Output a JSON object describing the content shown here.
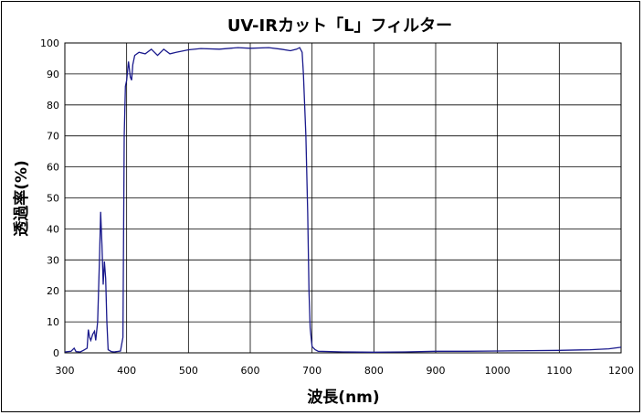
{
  "chart_data": {
    "type": "line",
    "title": "UV-IRカット「L」フィルター",
    "xlabel": "波長(nm)",
    "ylabel": "透過率(%)",
    "xlim": [
      300,
      1200
    ],
    "ylim": [
      0,
      100
    ],
    "xticks": [
      300,
      400,
      500,
      600,
      700,
      800,
      900,
      1000,
      1100,
      1200
    ],
    "yticks": [
      0,
      10,
      20,
      30,
      40,
      50,
      60,
      70,
      80,
      90,
      100
    ],
    "grid": true,
    "legend": "none",
    "colors": {
      "line": "#1a1a8c",
      "grid": "#000000"
    },
    "series": [
      {
        "values": [
          [
            300,
            0.3
          ],
          [
            310,
            0.5
          ],
          [
            315,
            1.5
          ],
          [
            318,
            0.4
          ],
          [
            325,
            0.3
          ],
          [
            330,
            0.8
          ],
          [
            336,
            1.5
          ],
          [
            338,
            7.5
          ],
          [
            340,
            5
          ],
          [
            342,
            4
          ],
          [
            345,
            6
          ],
          [
            348,
            7
          ],
          [
            350,
            4
          ],
          [
            353,
            10
          ],
          [
            356,
            30
          ],
          [
            358,
            45.5
          ],
          [
            360,
            35
          ],
          [
            362,
            22
          ],
          [
            364,
            29.5
          ],
          [
            366,
            24
          ],
          [
            368,
            10
          ],
          [
            370,
            1
          ],
          [
            375,
            0.4
          ],
          [
            380,
            0.3
          ],
          [
            390,
            0.6
          ],
          [
            394,
            5
          ],
          [
            396,
            70
          ],
          [
            398,
            86
          ],
          [
            400,
            88
          ],
          [
            403,
            94
          ],
          [
            406,
            89
          ],
          [
            408,
            88
          ],
          [
            410,
            93
          ],
          [
            413,
            96
          ],
          [
            420,
            97
          ],
          [
            430,
            96.5
          ],
          [
            440,
            98
          ],
          [
            450,
            96
          ],
          [
            460,
            98
          ],
          [
            470,
            96.5
          ],
          [
            480,
            97
          ],
          [
            500,
            97.8
          ],
          [
            520,
            98.2
          ],
          [
            550,
            98
          ],
          [
            580,
            98.5
          ],
          [
            600,
            98.3
          ],
          [
            630,
            98.5
          ],
          [
            650,
            98
          ],
          [
            665,
            97.5
          ],
          [
            675,
            98
          ],
          [
            680,
            98.5
          ],
          [
            684,
            97
          ],
          [
            686,
            90
          ],
          [
            690,
            70
          ],
          [
            693,
            45
          ],
          [
            695,
            20
          ],
          [
            697,
            8
          ],
          [
            700,
            2
          ],
          [
            705,
            1
          ],
          [
            710,
            0.5
          ],
          [
            750,
            0.3
          ],
          [
            800,
            0.2
          ],
          [
            850,
            0.3
          ],
          [
            900,
            0.5
          ],
          [
            950,
            0.5
          ],
          [
            1000,
            0.6
          ],
          [
            1050,
            0.7
          ],
          [
            1100,
            0.8
          ],
          [
            1150,
            1.0
          ],
          [
            1180,
            1.3
          ],
          [
            1200,
            1.8
          ]
        ]
      }
    ]
  }
}
